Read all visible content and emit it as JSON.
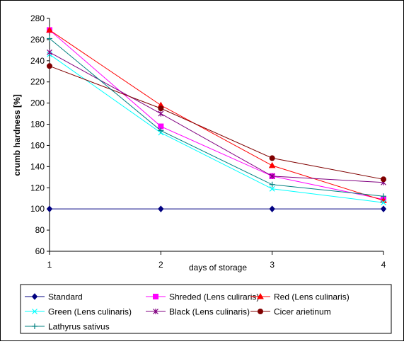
{
  "chart_data": {
    "type": "line",
    "x": [
      1,
      2,
      3,
      4
    ],
    "xlabel": "days of storage",
    "ylabel": "crumb hardness [%]",
    "ylim": [
      60,
      280
    ],
    "yticks": [
      60,
      80,
      100,
      120,
      140,
      160,
      180,
      200,
      220,
      240,
      260,
      280
    ],
    "xticks": [
      "1",
      "2",
      "3",
      "4"
    ],
    "grid": false,
    "legend_position": "bottom",
    "series": [
      {
        "name": "Standard",
        "values": [
          100,
          100,
          100,
          100
        ],
        "color": "#000080",
        "marker": "diamond"
      },
      {
        "name": "Shreded (Lens culiraris)",
        "values": [
          269,
          178,
          131,
          109
        ],
        "color": "#ff00ff",
        "marker": "square"
      },
      {
        "name": "Red (Lens culinaris)",
        "values": [
          269,
          198,
          141,
          108
        ],
        "color": "#ff0000",
        "marker": "triangle"
      },
      {
        "name": "Green (Lens culinaris)",
        "values": [
          246,
          172,
          119,
          106
        ],
        "color": "#00ffff",
        "marker": "x"
      },
      {
        "name": "Black (Lens culinaris)",
        "values": [
          248,
          190,
          131,
          125
        ],
        "color": "#800080",
        "marker": "star"
      },
      {
        "name": "Cicer arietinum",
        "values": [
          235,
          195,
          148,
          128
        ],
        "color": "#800000",
        "marker": "circle"
      },
      {
        "name": "Lathyrus sativus",
        "values": [
          261,
          174,
          123,
          112
        ],
        "color": "#008080",
        "marker": "plus"
      }
    ]
  }
}
